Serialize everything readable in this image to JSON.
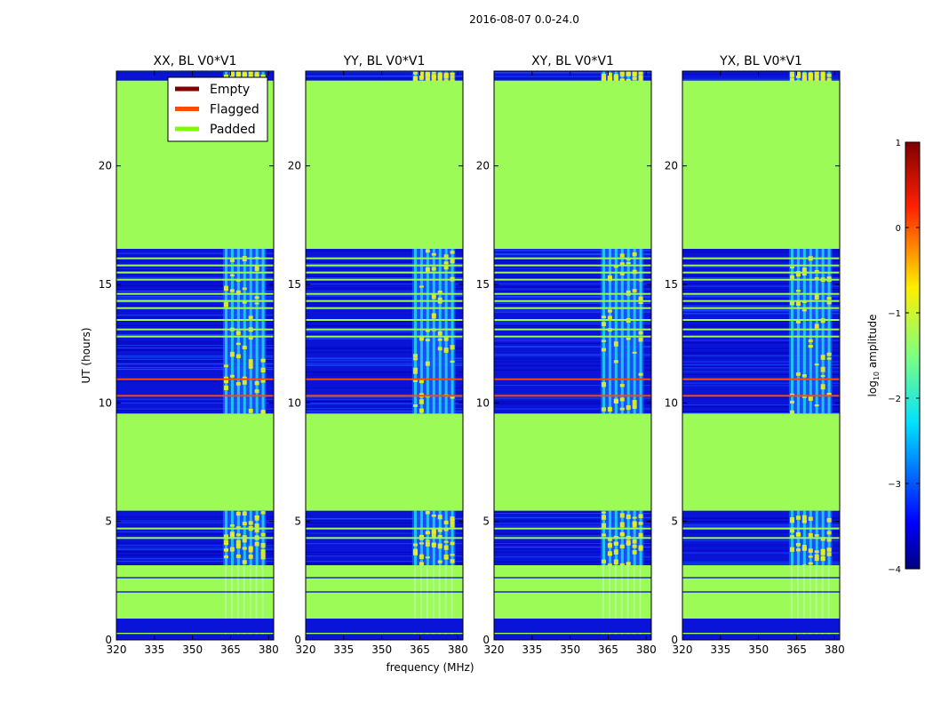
{
  "figure_title": "2016-08-07 0.0-24.0",
  "colors": {
    "padded": "#9dfb57",
    "flagged": "#ff4b00",
    "empty": "#800000",
    "noise_blue": "#0a14d8",
    "noise_mid": "#1e5cff",
    "rfi_cyan": "#20d8f0",
    "rfi_yellow": "#e8f020"
  },
  "chart_data": {
    "type": "heatmap",
    "xlabel": "frequency (MHz)",
    "ylabel": "UT (hours)",
    "xlim": [
      320,
      382
    ],
    "ylim": [
      0,
      24
    ],
    "xticks": [
      320,
      335,
      350,
      365,
      380
    ],
    "yticks": [
      0,
      5,
      10,
      15,
      20
    ],
    "panels": [
      {
        "title": "XX, BL V0*V1",
        "show_legend": true
      },
      {
        "title": "YY, BL V0*V1",
        "show_legend": false
      },
      {
        "title": "XY, BL V0*V1",
        "show_legend": false
      },
      {
        "title": "YX, BL V0*V1",
        "show_legend": false
      }
    ],
    "legend": [
      {
        "label": "Empty",
        "color": "#800000"
      },
      {
        "label": "Flagged",
        "color": "#ff4b00"
      },
      {
        "label": "Padded",
        "color": "#7cfc00"
      }
    ],
    "padded_ranges_hours": [
      [
        0.25,
        0.3
      ],
      [
        0.9,
        2.0
      ],
      [
        2.05,
        2.6
      ],
      [
        2.65,
        3.15
      ],
      [
        5.45,
        9.55
      ],
      [
        16.5,
        23.6
      ]
    ],
    "data_ranges_hours": [
      [
        3.15,
        5.45
      ],
      [
        9.55,
        16.5
      ],
      [
        23.6,
        24.0
      ]
    ],
    "padded_lines_hours": [
      4.3,
      4.7,
      12.8,
      13.1,
      13.5,
      14.0,
      14.3,
      14.6,
      15.2,
      15.5,
      15.8,
      16.1
    ],
    "flagged_lines_hours": [
      10.3,
      11.0
    ],
    "rfi_band_mhz": [
      362,
      379
    ],
    "colorbar": {
      "label": "log",
      "label_sub": "10",
      "label_rest": " amplitude",
      "ticks": [
        1,
        0,
        -1,
        -2,
        -3,
        -4
      ],
      "tick_labels": [
        "1",
        "0",
        "−1",
        "−2",
        "−3",
        "−4"
      ],
      "range": [
        -4,
        1
      ]
    }
  }
}
